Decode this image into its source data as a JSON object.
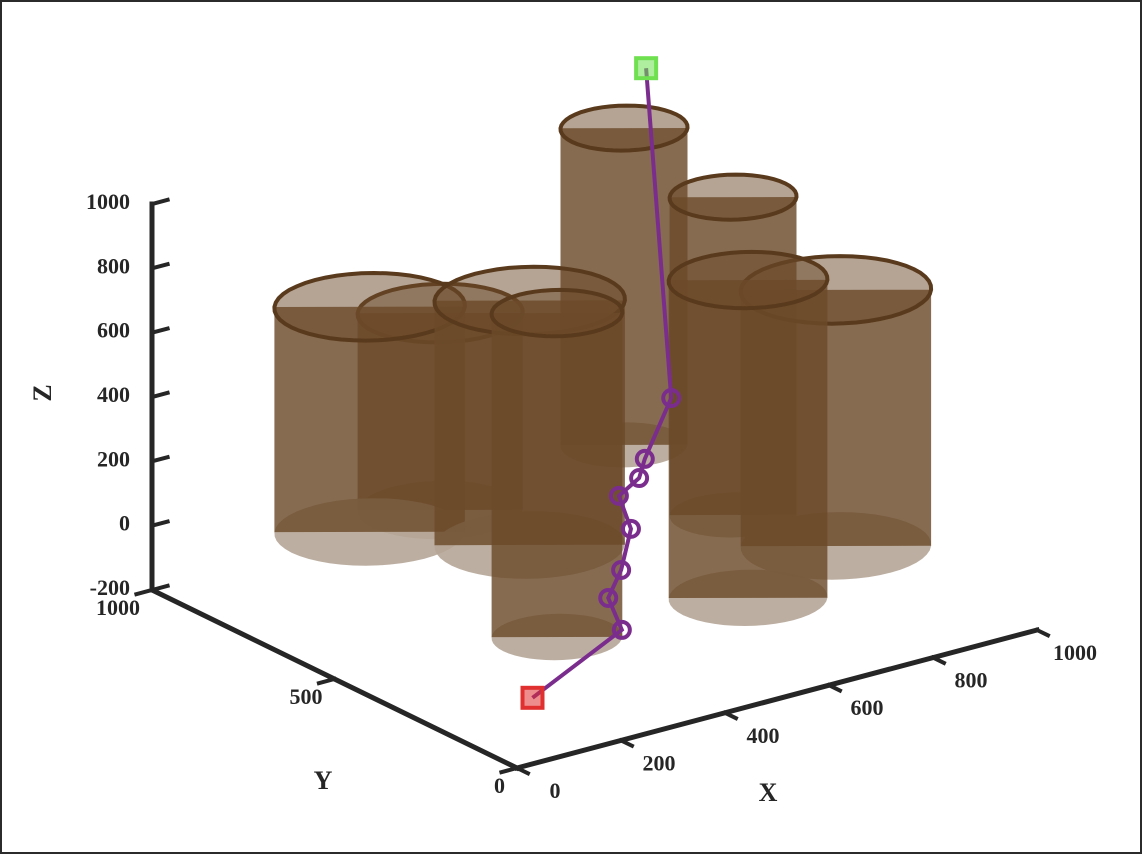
{
  "chart_data": {
    "type": "path3d",
    "xlabel": "X",
    "ylabel": "Y",
    "zlabel": "Z",
    "xlim": [
      0,
      1000
    ],
    "ylim": [
      0,
      1000
    ],
    "zlim": [
      -200,
      1000
    ],
    "xticks": [
      0,
      200,
      400,
      600,
      800,
      1000
    ],
    "yticks": [
      0,
      500,
      1000
    ],
    "zticks": [
      -200,
      0,
      200,
      400,
      600,
      800,
      1000
    ],
    "path": {
      "color": "#7b2d8e",
      "x": [
        100,
        342,
        386,
        467,
        535,
        582,
        656,
        702,
        823,
        880
      ],
      "y": [
        100,
        200,
        300,
        380,
        450,
        550,
        600,
        650,
        750,
        900
      ],
      "z": [
        -80,
        -28,
        -3,
        5,
        65,
        92,
        88,
        100,
        182,
        1100
      ]
    },
    "start_color": "#e03030",
    "end_color": "#6fe050",
    "cylinders": {
      "color": "#6b4a2a",
      "x": [
        255,
        421,
        399,
        220,
        794,
        751,
        558,
        800
      ],
      "y": [
        767,
        565,
        779,
        204,
        838,
        478,
        162,
        266
      ],
      "r": [
        150,
        150,
        130,
        103,
        100,
        100,
        125,
        150
      ],
      "zmin": [
        0,
        0,
        0,
        0,
        0,
        0,
        0,
        0
      ],
      "zmax": [
        700,
        760,
        612,
        1007,
        985,
        988,
        988,
        796
      ]
    }
  }
}
